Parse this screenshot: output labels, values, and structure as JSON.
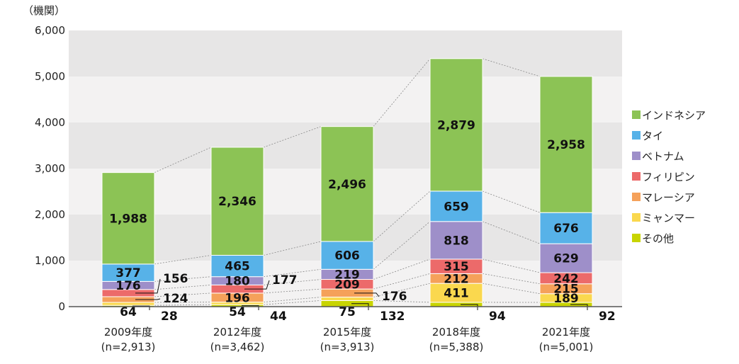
{
  "chart_data": {
    "type": "bar",
    "stacked": true,
    "unit_label": "（機関）",
    "ylim": [
      0,
      6000
    ],
    "yticks": [
      "0",
      "1,000",
      "2,000",
      "3,000",
      "4,000",
      "5,000",
      "6,000"
    ],
    "categories": [
      "2009年度",
      "2012年度",
      "2015年度",
      "2018年度",
      "2021年度"
    ],
    "category_n": [
      "(n=2,913)",
      "(n=3,462)",
      "(n=3,913)",
      "(n=5,388)",
      "(n=5,001)"
    ],
    "series": [
      {
        "name": "その他",
        "color": "#c8d400",
        "values": [
          28,
          44,
          132,
          94,
          92
        ]
      },
      {
        "name": "ミャンマー",
        "color": "#fad84e",
        "values": [
          64,
          54,
          75,
          411,
          189
        ]
      },
      {
        "name": "マレーシア",
        "color": "#f5a15a",
        "values": [
          124,
          196,
          176,
          212,
          215
        ]
      },
      {
        "name": "フィリピン",
        "color": "#ec6a6a",
        "values": [
          156,
          177,
          209,
          315,
          242
        ]
      },
      {
        "name": "ベトナム",
        "color": "#9e8fc9",
        "values": [
          176,
          180,
          219,
          818,
          629
        ]
      },
      {
        "name": "タイ",
        "color": "#57b2e8",
        "values": [
          377,
          465,
          606,
          659,
          676
        ]
      },
      {
        "name": "インドネシア",
        "color": "#8cc355",
        "values": [
          1988,
          2346,
          2496,
          2879,
          2958
        ]
      }
    ],
    "grid": true,
    "legend_position": "right"
  }
}
